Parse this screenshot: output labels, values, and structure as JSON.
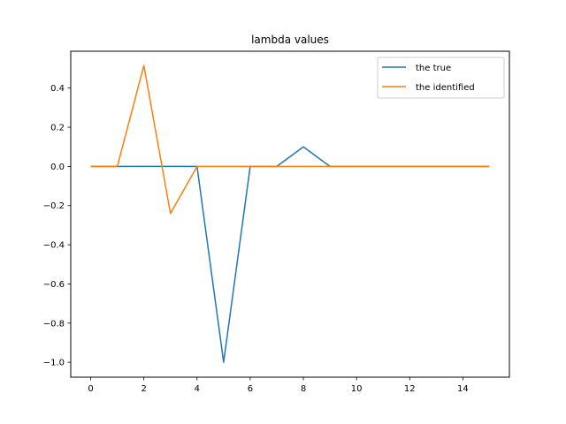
{
  "chart_data": {
    "type": "line",
    "title": "lambda values",
    "xlabel": "",
    "ylabel": "",
    "xlim": [
      -0.75,
      15.75
    ],
    "ylim": [
      -1.076,
      0.588
    ],
    "xticks": [
      0,
      2,
      4,
      6,
      8,
      10,
      12,
      14
    ],
    "xtick_labels": [
      "0",
      "2",
      "4",
      "6",
      "8",
      "10",
      "12",
      "14"
    ],
    "yticks": [
      -1.0,
      -0.8,
      -0.6,
      -0.4,
      -0.2,
      0.0,
      0.2,
      0.4
    ],
    "ytick_labels": [
      "−1.0",
      "−0.8",
      "−0.6",
      "−0.4",
      "−0.2",
      "0.0",
      "0.2",
      "0.4"
    ],
    "grid": false,
    "legend_position": "top-right",
    "x": [
      0,
      1,
      2,
      3,
      4,
      5,
      6,
      7,
      8,
      9,
      10,
      11,
      12,
      13,
      14,
      15
    ],
    "series": [
      {
        "name": "the true",
        "color": "#1f77b4",
        "values": [
          0,
          0,
          0,
          0,
          0,
          -1.0,
          0,
          0,
          0.1,
          0,
          0,
          0,
          0,
          0,
          0,
          0
        ]
      },
      {
        "name": "the identified",
        "color": "#ff7f0e",
        "values": [
          0,
          0,
          0.515,
          -0.24,
          0,
          0,
          0,
          0,
          0,
          0,
          0,
          0,
          0,
          0,
          0,
          0
        ]
      }
    ]
  }
}
